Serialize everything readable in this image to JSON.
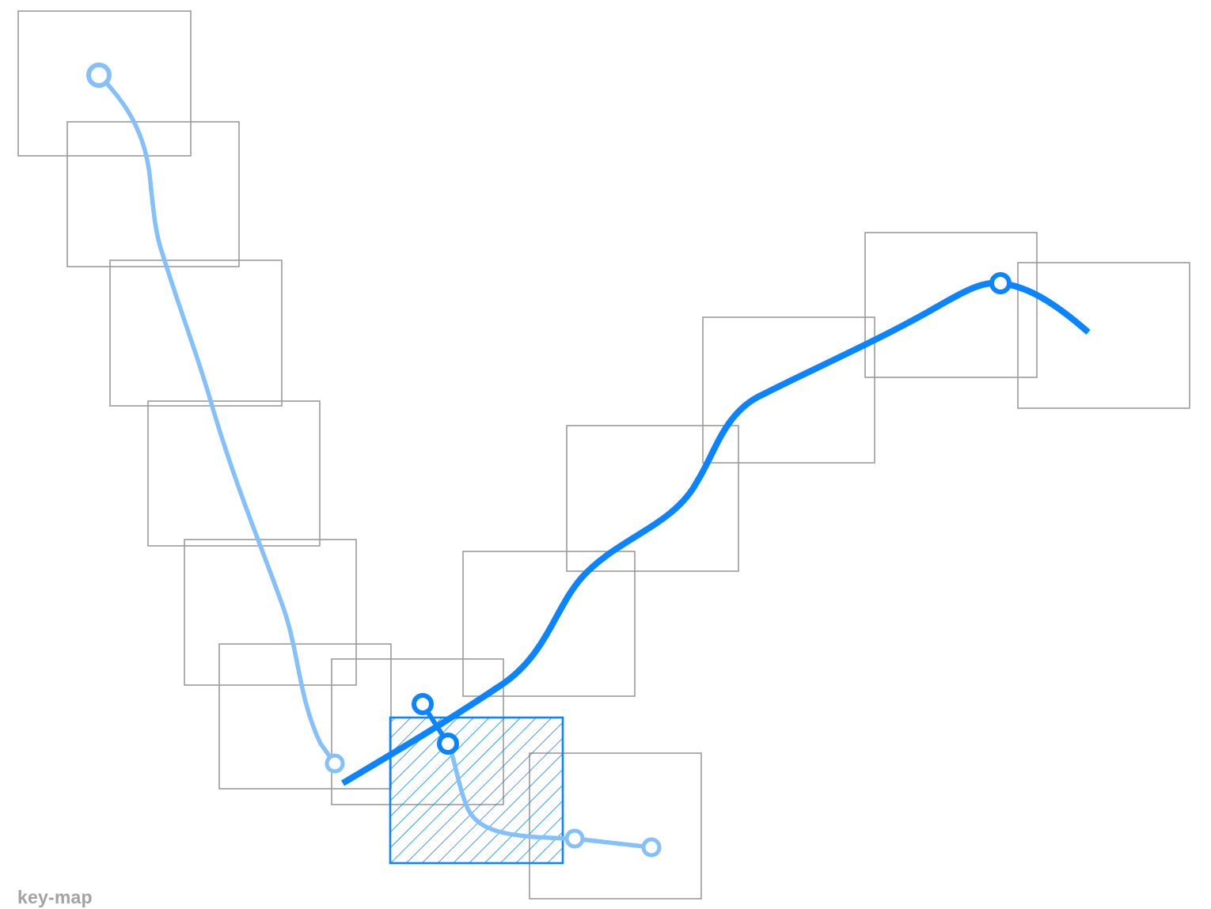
{
  "caption": "key-map",
  "colors": {
    "frame": "#9b9b9b",
    "selected": "#0a84ff",
    "secondary": "#84c0fc",
    "caption": "#a3a3a3"
  },
  "icons": {
    "waypoint": "ring-marker-icon",
    "selection": "hatched-selection-icon"
  }
}
